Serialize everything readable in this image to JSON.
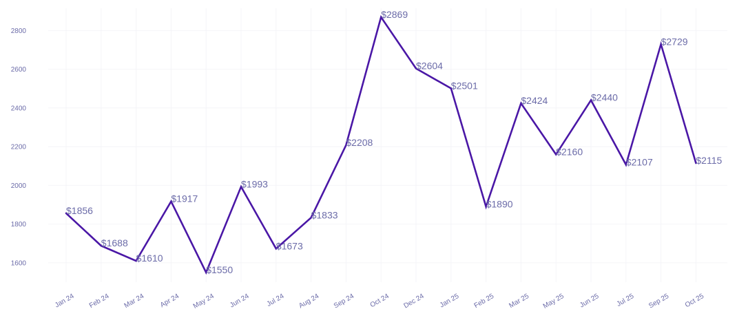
{
  "chart_data": {
    "type": "line",
    "title": "",
    "xlabel": "",
    "ylabel": "",
    "categories": [
      "Jan 24",
      "Feb 24",
      "Mar 24",
      "Apr 24",
      "May 24",
      "Jun 24",
      "Jul 24",
      "Aug 24",
      "Sep 24",
      "Oct 24",
      "Dec 24",
      "Jan 25",
      "Feb 25",
      "Mar 25",
      "May 25",
      "Jun 25",
      "Jul 25",
      "Sep 25",
      "Oct 25"
    ],
    "series": [
      {
        "values": [
          1856,
          1688,
          1610,
          1917,
          1550,
          1993,
          1673,
          1833,
          2208,
          2869,
          2604,
          2501,
          1890,
          2424,
          2160,
          2440,
          2107,
          2729,
          2115
        ],
        "data_labels": [
          "$1856",
          "$1688",
          "$1610",
          "$1917",
          "$1550",
          "$1993",
          "$1673",
          "$1833",
          "$2208",
          "$2869",
          "$2604",
          "$2501",
          "$1890",
          "$2424",
          "$2160",
          "$2440",
          "$2107",
          "$2729",
          "$2115"
        ],
        "color": "#4a17a6"
      }
    ],
    "yticks": [
      1600,
      1800,
      2000,
      2200,
      2400,
      2600,
      2800
    ],
    "ylim": [
      1500,
      2915
    ],
    "grid": true,
    "legend": "none",
    "colors": {
      "line": "#4a17a6",
      "text": "#6b6ba8",
      "grid": "#f4f4f8"
    }
  }
}
